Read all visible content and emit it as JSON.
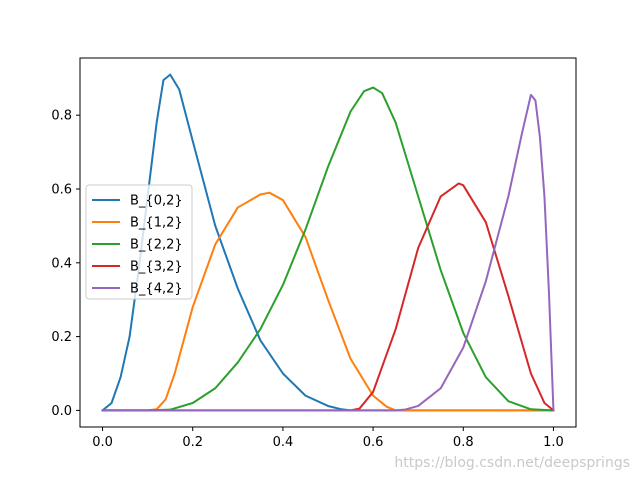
{
  "chart_data": {
    "type": "line",
    "title": "",
    "xlabel": "",
    "ylabel": "",
    "xlim": [
      -0.05,
      1.05
    ],
    "ylim": [
      -0.045,
      0.955
    ],
    "grid": false,
    "legend_position": "center-left",
    "xticks": [
      0.0,
      0.2,
      0.4,
      0.6,
      0.8,
      1.0
    ],
    "xtick_labels": [
      "0.0",
      "0.2",
      "0.4",
      "0.6",
      "0.8",
      "1.0"
    ],
    "yticks": [
      0.0,
      0.2,
      0.4,
      0.6,
      0.8
    ],
    "ytick_labels": [
      "0.0",
      "0.2",
      "0.4",
      "0.6",
      "0.8"
    ],
    "series": [
      {
        "name": "B_{0,2}",
        "color": "#1f77b4",
        "x": [
          0.0,
          0.02,
          0.04,
          0.06,
          0.08,
          0.1,
          0.12,
          0.135,
          0.15,
          0.17,
          0.2,
          0.25,
          0.3,
          0.35,
          0.4,
          0.45,
          0.5,
          0.53,
          0.55,
          0.6,
          0.7,
          0.8,
          0.9,
          1.0
        ],
        "y": [
          0.0,
          0.02,
          0.09,
          0.2,
          0.38,
          0.58,
          0.78,
          0.895,
          0.91,
          0.87,
          0.73,
          0.5,
          0.33,
          0.19,
          0.1,
          0.04,
          0.012,
          0.003,
          0.0,
          0.0,
          0.0,
          0.0,
          0.0,
          0.0
        ]
      },
      {
        "name": "B_{1,2}",
        "color": "#ff7f0e",
        "x": [
          0.0,
          0.05,
          0.1,
          0.12,
          0.14,
          0.16,
          0.2,
          0.25,
          0.3,
          0.35,
          0.37,
          0.4,
          0.45,
          0.5,
          0.55,
          0.6,
          0.63,
          0.65,
          0.7,
          0.8,
          0.9,
          1.0
        ],
        "y": [
          0.0,
          0.0,
          0.0,
          0.003,
          0.03,
          0.1,
          0.28,
          0.45,
          0.55,
          0.585,
          0.59,
          0.57,
          0.47,
          0.3,
          0.14,
          0.04,
          0.01,
          0.0,
          0.0,
          0.0,
          0.0,
          0.0
        ],
        "y_note_omitted": null
      },
      {
        "name": "B_{2,2}",
        "color": "#2ca02c",
        "x": [
          0.0,
          0.1,
          0.15,
          0.2,
          0.25,
          0.3,
          0.35,
          0.4,
          0.45,
          0.5,
          0.55,
          0.58,
          0.6,
          0.62,
          0.65,
          0.7,
          0.75,
          0.8,
          0.85,
          0.9,
          0.95,
          1.0
        ],
        "y": [
          0.0,
          0.0,
          0.002,
          0.02,
          0.06,
          0.13,
          0.22,
          0.34,
          0.49,
          0.66,
          0.81,
          0.865,
          0.875,
          0.86,
          0.78,
          0.58,
          0.38,
          0.21,
          0.09,
          0.025,
          0.003,
          0.0
        ]
      },
      {
        "name": "B_{3,2}",
        "color": "#d62728",
        "x": [
          0.0,
          0.2,
          0.4,
          0.55,
          0.57,
          0.6,
          0.65,
          0.7,
          0.75,
          0.79,
          0.8,
          0.85,
          0.9,
          0.95,
          0.98,
          1.0
        ],
        "y": [
          0.0,
          0.0,
          0.0,
          0.0,
          0.005,
          0.05,
          0.22,
          0.44,
          0.58,
          0.615,
          0.61,
          0.51,
          0.31,
          0.1,
          0.02,
          0.0
        ]
      },
      {
        "name": "B_{4,2}",
        "color": "#9467bd",
        "x": [
          0.0,
          0.2,
          0.4,
          0.6,
          0.65,
          0.67,
          0.7,
          0.75,
          0.8,
          0.85,
          0.9,
          0.93,
          0.95,
          0.96,
          0.97,
          0.98,
          0.99,
          1.0
        ],
        "y": [
          0.0,
          0.0,
          0.0,
          0.0,
          0.0,
          0.002,
          0.012,
          0.06,
          0.17,
          0.35,
          0.58,
          0.75,
          0.855,
          0.84,
          0.74,
          0.58,
          0.32,
          0.0
        ]
      }
    ]
  },
  "watermark": "https://blog.csdn.net/deepsprings"
}
